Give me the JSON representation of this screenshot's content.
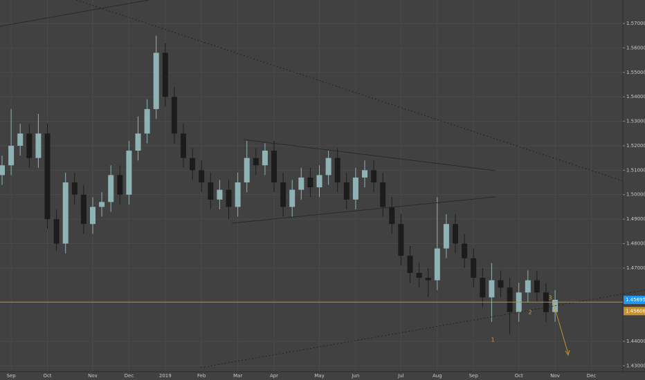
{
  "chart_data": {
    "type": "candlestick",
    "categories": [
      null,
      "Sep",
      null,
      null,
      null,
      "Oct",
      null,
      null,
      null,
      null,
      "Nov",
      null,
      null,
      null,
      "Dec",
      null,
      null,
      null,
      "2019",
      null,
      null,
      null,
      "Feb",
      null,
      null,
      null,
      "Mar",
      null,
      null,
      null,
      "Apr",
      null,
      null,
      null,
      null,
      "May",
      null,
      null,
      null,
      "Jun",
      null,
      null,
      null,
      null,
      "Jul",
      null,
      null,
      null,
      "Aug",
      null,
      null,
      null,
      "Sep",
      null,
      null,
      null,
      null,
      "Oct",
      null,
      null,
      null,
      "Nov",
      null,
      null,
      null,
      "Dec"
    ],
    "open": [
      1.508,
      1.512,
      1.52,
      1.525,
      1.515,
      1.525,
      1.49,
      1.48,
      1.505,
      1.5,
      1.488,
      1.495,
      1.497,
      1.508,
      1.5,
      1.518,
      1.525,
      1.535,
      1.558,
      1.54,
      1.525,
      1.515,
      1.51,
      1.505,
      1.498,
      1.502,
      1.495,
      1.505,
      1.515,
      1.512,
      1.518,
      1.505,
      1.495,
      1.502,
      1.507,
      1.503,
      1.508,
      1.515,
      1.505,
      1.498,
      1.507,
      1.51,
      1.505,
      1.495,
      1.488,
      1.475,
      1.468,
      1.466,
      1.465,
      1.478,
      1.488,
      1.48,
      1.474,
      1.466,
      1.458,
      1.465,
      1.462,
      1.452,
      1.46,
      1.465,
      1.46,
      1.452,
      null,
      null,
      null,
      null
    ],
    "high": [
      1.516,
      1.535,
      1.529,
      1.529,
      1.533,
      1.529,
      1.494,
      1.509,
      1.509,
      1.504,
      1.499,
      1.501,
      1.512,
      1.512,
      1.522,
      1.532,
      1.539,
      1.565,
      1.562,
      1.544,
      1.529,
      1.519,
      1.514,
      1.509,
      1.506,
      1.506,
      1.509,
      1.522,
      1.519,
      1.521,
      1.522,
      1.509,
      1.506,
      1.511,
      1.511,
      1.512,
      1.518,
      1.519,
      1.509,
      1.511,
      1.514,
      1.514,
      1.509,
      1.499,
      1.492,
      1.479,
      1.472,
      1.47,
      1.499,
      1.492,
      1.492,
      1.484,
      1.478,
      1.47,
      1.472,
      1.469,
      1.466,
      1.464,
      1.469,
      1.469,
      1.464,
      1.461,
      null,
      null,
      null,
      null
    ],
    "low": [
      1.504,
      1.508,
      1.516,
      1.511,
      1.511,
      1.486,
      1.477,
      1.476,
      1.496,
      1.484,
      1.484,
      1.491,
      1.493,
      1.496,
      1.496,
      1.514,
      1.521,
      1.531,
      1.536,
      1.521,
      1.511,
      1.506,
      1.501,
      1.494,
      1.494,
      1.49,
      1.491,
      1.501,
      1.508,
      1.508,
      1.501,
      1.491,
      1.491,
      1.498,
      1.499,
      1.499,
      1.504,
      1.501,
      1.494,
      1.494,
      1.503,
      1.501,
      1.491,
      1.484,
      1.471,
      1.464,
      1.462,
      1.458,
      1.461,
      1.474,
      1.476,
      1.47,
      1.462,
      1.454,
      1.448,
      1.458,
      1.443,
      1.448,
      1.456,
      1.456,
      1.448,
      1.448,
      null,
      null,
      null,
      null
    ],
    "close": [
      1.512,
      1.52,
      1.525,
      1.515,
      1.525,
      1.49,
      1.48,
      1.505,
      1.5,
      1.488,
      1.495,
      1.497,
      1.508,
      1.5,
      1.518,
      1.525,
      1.535,
      1.558,
      1.54,
      1.525,
      1.515,
      1.51,
      1.505,
      1.498,
      1.502,
      1.495,
      1.505,
      1.515,
      1.512,
      1.518,
      1.505,
      1.495,
      1.502,
      1.507,
      1.503,
      1.508,
      1.515,
      1.505,
      1.498,
      1.507,
      1.51,
      1.505,
      1.495,
      1.488,
      1.475,
      1.468,
      1.466,
      1.465,
      1.478,
      1.488,
      1.48,
      1.474,
      1.466,
      1.458,
      1.465,
      1.462,
      1.452,
      1.46,
      1.465,
      1.46,
      1.452,
      1.457,
      null,
      null,
      null,
      null
    ],
    "up_color": "#8fb3b5",
    "down_color": "#1c1c1c",
    "ylim": [
      1.4276,
      1.5796
    ],
    "yticks": [
      {
        "value": 1.43,
        "label": "1.43000"
      },
      {
        "value": 1.44,
        "label": "1.44000"
      },
      {
        "value": 1.47,
        "label": "1.47000"
      },
      {
        "value": 1.48,
        "label": "1.48000"
      },
      {
        "value": 1.49,
        "label": "1.49000"
      },
      {
        "value": 1.5,
        "label": "1.50000"
      },
      {
        "value": 1.51,
        "label": "1.51000"
      },
      {
        "value": 1.52,
        "label": "1.52000"
      },
      {
        "value": 1.53,
        "label": "1.53000"
      },
      {
        "value": 1.54,
        "label": "1.54000"
      },
      {
        "value": 1.55,
        "label": "1.55000"
      },
      {
        "value": 1.56,
        "label": "1.56000"
      },
      {
        "value": 1.57,
        "label": "1.57000"
      }
    ],
    "grid": true,
    "price_lines": [
      {
        "value": 1.45695,
        "color": "#2196f3"
      },
      {
        "value": 1.45606,
        "color": "#c8912f"
      }
    ],
    "annotations": [
      "1",
      "2",
      "3"
    ]
  }
}
